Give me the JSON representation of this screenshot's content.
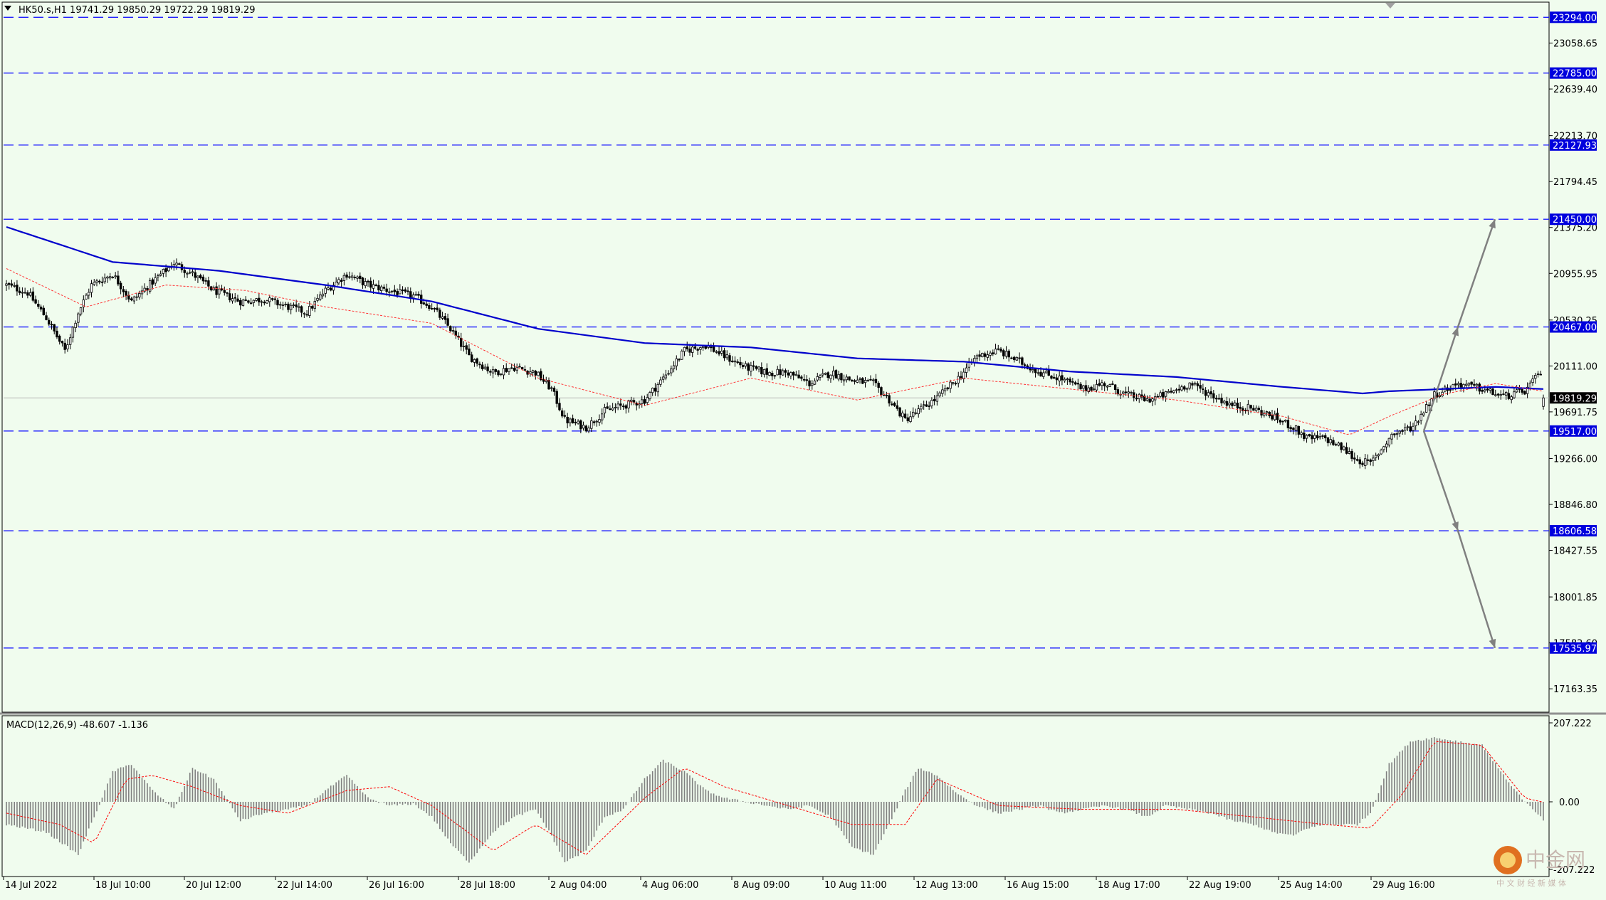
{
  "symbol_header": "HK50.s,H1  19741.29 19850.29 19722.29 19819.29",
  "macd_header": "MACD(12,26,9) -48.607 -1.136",
  "watermark": {
    "cn": "中金网",
    "sub": "中 文 财 经 新 媒 体"
  },
  "colors": {
    "background": "#f0fcee",
    "level_line": "#1a1aff",
    "ma_slow": "#0000cc",
    "ma_fast": "#ff3333",
    "candle": "#000000",
    "macd_hist": "#808080",
    "macd_signal": "#ff0000",
    "arrow": "#808080",
    "price_tag_bg": "#0000dd",
    "price_tag_text": "#ffffff",
    "current_tag_bg": "#000000"
  },
  "chart_data": [
    {
      "type": "candlestick",
      "instrument": "HK50.s",
      "timeframe": "H1",
      "ohlc_last": {
        "open": 19741.29,
        "high": 19850.29,
        "low": 19722.29,
        "close": 19819.29
      },
      "ylim": [
        16950,
        23400
      ],
      "y_ticks": [
        "23058.65",
        "22639.40",
        "22213.70",
        "21794.45",
        "21375.20",
        "20955.95",
        "20530.25",
        "20111.00",
        "19691.75",
        "19266.00",
        "18846.80",
        "18427.55",
        "18001.85",
        "17582.60",
        "17163.35"
      ],
      "y_ticks_values": [
        23058.65,
        22639.4,
        22213.7,
        21794.45,
        21375.2,
        20955.95,
        20530.25,
        20111.0,
        19691.75,
        19266.0,
        18846.8,
        18427.55,
        18001.85,
        17582.6,
        17163.35
      ],
      "x_ticks": [
        "14 Jul 2022",
        "18 Jul 10:00",
        "20 Jul 12:00",
        "22 Jul 14:00",
        "26 Jul 16:00",
        "28 Jul 18:00",
        "2 Aug 04:00",
        "4 Aug 06:00",
        "8 Aug 09:00",
        "10 Aug 11:00",
        "12 Aug 13:00",
        "16 Aug 15:00",
        "18 Aug 17:00",
        "22 Aug 19:00",
        "25 Aug 14:00",
        "29 Aug 16:00"
      ],
      "levels": [
        {
          "value": 23294.0,
          "label": "23294.00"
        },
        {
          "value": 22785.0,
          "label": "22785.00"
        },
        {
          "value": 22127.93,
          "label": "22127.93"
        },
        {
          "value": 21450.0,
          "label": "21450.00"
        },
        {
          "value": 20467.0,
          "label": "20467.00"
        },
        {
          "value": 19517.0,
          "label": "19517.00"
        },
        {
          "value": 18606.58,
          "label": "18606.58"
        },
        {
          "value": 17535.97,
          "label": "17535.97"
        }
      ],
      "current_price": {
        "value": 19819.29,
        "label": "19819.29"
      },
      "close_path": [
        [
          0,
          20850
        ],
        [
          8,
          20780
        ],
        [
          15,
          20550
        ],
        [
          22,
          20250
        ],
        [
          27,
          20600
        ],
        [
          32,
          20850
        ],
        [
          40,
          20950
        ],
        [
          47,
          20700
        ],
        [
          55,
          20880
        ],
        [
          63,
          21050
        ],
        [
          70,
          20950
        ],
        [
          78,
          20800
        ],
        [
          88,
          20700
        ],
        [
          97,
          20720
        ],
        [
          106,
          20650
        ],
        [
          113,
          20600
        ],
        [
          120,
          20800
        ],
        [
          128,
          20950
        ],
        [
          136,
          20850
        ],
        [
          144,
          20800
        ],
        [
          153,
          20750
        ],
        [
          160,
          20650
        ],
        [
          167,
          20450
        ],
        [
          174,
          20200
        ],
        [
          183,
          20050
        ],
        [
          191,
          20100
        ],
        [
          199,
          20050
        ],
        [
          205,
          19900
        ],
        [
          210,
          19620
        ],
        [
          218,
          19550
        ],
        [
          225,
          19700
        ],
        [
          232,
          19750
        ],
        [
          240,
          19800
        ],
        [
          247,
          20000
        ],
        [
          255,
          20250
        ],
        [
          263,
          20300
        ],
        [
          270,
          20200
        ],
        [
          278,
          20100
        ],
        [
          286,
          20050
        ],
        [
          294,
          20050
        ],
        [
          302,
          19950
        ],
        [
          310,
          20050
        ],
        [
          318,
          19980
        ],
        [
          326,
          19950
        ],
        [
          332,
          19800
        ],
        [
          338,
          19620
        ],
        [
          343,
          19700
        ],
        [
          350,
          19820
        ],
        [
          358,
          20000
        ],
        [
          365,
          20200
        ],
        [
          373,
          20250
        ],
        [
          381,
          20150
        ],
        [
          389,
          20050
        ],
        [
          396,
          20000
        ],
        [
          405,
          19900
        ],
        [
          413,
          19950
        ],
        [
          421,
          19850
        ],
        [
          429,
          19800
        ],
        [
          436,
          19850
        ],
        [
          445,
          19950
        ],
        [
          453,
          19850
        ],
        [
          461,
          19750
        ],
        [
          469,
          19720
        ],
        [
          476,
          19650
        ],
        [
          484,
          19550
        ],
        [
          489,
          19450
        ],
        [
          496,
          19450
        ],
        [
          503,
          19350
        ],
        [
          508,
          19250
        ],
        [
          513,
          19220
        ],
        [
          521,
          19480
        ],
        [
          529,
          19560
        ],
        [
          537,
          19850
        ],
        [
          546,
          19950
        ],
        [
          555,
          19900
        ],
        [
          563,
          19830
        ],
        [
          571,
          19880
        ],
        [
          578,
          20080
        ]
      ],
      "ma_slow_path": [
        [
          0,
          21380
        ],
        [
          40,
          21060
        ],
        [
          80,
          20980
        ],
        [
          120,
          20850
        ],
        [
          160,
          20700
        ],
        [
          200,
          20450
        ],
        [
          240,
          20320
        ],
        [
          280,
          20280
        ],
        [
          320,
          20180
        ],
        [
          360,
          20150
        ],
        [
          400,
          20060
        ],
        [
          440,
          20010
        ],
        [
          480,
          19920
        ],
        [
          510,
          19860
        ],
        [
          520,
          19880
        ],
        [
          560,
          19920
        ],
        [
          578,
          19900
        ]
      ],
      "ma_fast_path": [
        [
          0,
          21000
        ],
        [
          30,
          20650
        ],
        [
          60,
          20850
        ],
        [
          90,
          20800
        ],
        [
          120,
          20650
        ],
        [
          160,
          20500
        ],
        [
          200,
          20000
        ],
        [
          240,
          19750
        ],
        [
          280,
          20000
        ],
        [
          320,
          19800
        ],
        [
          360,
          20000
        ],
        [
          400,
          19900
        ],
        [
          440,
          19800
        ],
        [
          480,
          19650
        ],
        [
          505,
          19480
        ],
        [
          520,
          19650
        ],
        [
          540,
          19850
        ],
        [
          560,
          19950
        ],
        [
          578,
          19880
        ]
      ],
      "scenario_arrows": [
        {
          "from": [
            19517,
            0
          ],
          "to": [
            20467,
            1
          ],
          "label": ""
        },
        {
          "from": [
            20467,
            1
          ],
          "to": [
            21450,
            2
          ],
          "label": ""
        },
        {
          "from": [
            19517,
            0
          ],
          "to": [
            18606.58,
            1
          ],
          "label": ""
        },
        {
          "from": [
            18606.58,
            1
          ],
          "to": [
            17535.97,
            2
          ],
          "label": ""
        }
      ]
    },
    {
      "type": "bar",
      "indicator": "MACD(12,26,9)",
      "macd_value": -48.607,
      "signal_value": -1.136,
      "ylim": [
        -207.222,
        207.222
      ],
      "y_ticks": [
        "207.222",
        "0.00",
        "-207.222"
      ],
      "y_ticks_values": [
        207.222,
        0,
        -207.222
      ],
      "hist_path": [
        [
          0,
          -60
        ],
        [
          15,
          -80
        ],
        [
          27,
          -140
        ],
        [
          33,
          -40
        ],
        [
          40,
          80
        ],
        [
          47,
          100
        ],
        [
          55,
          30
        ],
        [
          63,
          -20
        ],
        [
          70,
          90
        ],
        [
          78,
          60
        ],
        [
          88,
          -50
        ],
        [
          97,
          -30
        ],
        [
          106,
          -20
        ],
        [
          113,
          -10
        ],
        [
          120,
          30
        ],
        [
          128,
          70
        ],
        [
          136,
          10
        ],
        [
          144,
          -10
        ],
        [
          153,
          -5
        ],
        [
          160,
          -40
        ],
        [
          167,
          -110
        ],
        [
          174,
          -160
        ],
        [
          183,
          -80
        ],
        [
          191,
          -40
        ],
        [
          199,
          -20
        ],
        [
          205,
          -90
        ],
        [
          210,
          -160
        ],
        [
          218,
          -130
        ],
        [
          225,
          -40
        ],
        [
          232,
          -20
        ],
        [
          240,
          60
        ],
        [
          247,
          110
        ],
        [
          255,
          80
        ],
        [
          263,
          30
        ],
        [
          270,
          10
        ],
        [
          278,
          0
        ],
        [
          286,
          -10
        ],
        [
          294,
          -20
        ],
        [
          302,
          -10
        ],
        [
          310,
          -40
        ],
        [
          318,
          -120
        ],
        [
          326,
          -140
        ],
        [
          332,
          -60
        ],
        [
          338,
          30
        ],
        [
          343,
          90
        ],
        [
          350,
          70
        ],
        [
          358,
          20
        ],
        [
          365,
          -10
        ],
        [
          373,
          -30
        ],
        [
          381,
          -20
        ],
        [
          389,
          -10
        ],
        [
          396,
          -30
        ],
        [
          405,
          -20
        ],
        [
          413,
          -10
        ],
        [
          421,
          -20
        ],
        [
          429,
          -40
        ],
        [
          436,
          -10
        ],
        [
          445,
          -20
        ],
        [
          453,
          -30
        ],
        [
          461,
          -50
        ],
        [
          469,
          -60
        ],
        [
          476,
          -80
        ],
        [
          484,
          -90
        ],
        [
          489,
          -70
        ],
        [
          496,
          -60
        ],
        [
          503,
          -60
        ],
        [
          508,
          -60
        ],
        [
          513,
          -30
        ],
        [
          520,
          100
        ],
        [
          528,
          160
        ],
        [
          537,
          170
        ],
        [
          546,
          160
        ],
        [
          555,
          150
        ],
        [
          563,
          70
        ],
        [
          571,
          0
        ],
        [
          578,
          -48
        ]
      ],
      "signal_path": [
        [
          0,
          -30
        ],
        [
          20,
          -60
        ],
        [
          33,
          -110
        ],
        [
          45,
          60
        ],
        [
          55,
          70
        ],
        [
          70,
          40
        ],
        [
          88,
          -10
        ],
        [
          106,
          -30
        ],
        [
          128,
          30
        ],
        [
          144,
          40
        ],
        [
          160,
          -10
        ],
        [
          183,
          -130
        ],
        [
          199,
          -60
        ],
        [
          218,
          -140
        ],
        [
          240,
          10
        ],
        [
          255,
          90
        ],
        [
          270,
          40
        ],
        [
          294,
          -10
        ],
        [
          318,
          -60
        ],
        [
          338,
          -60
        ],
        [
          350,
          60
        ],
        [
          373,
          -10
        ],
        [
          405,
          -20
        ],
        [
          440,
          -20
        ],
        [
          469,
          -40
        ],
        [
          496,
          -60
        ],
        [
          513,
          -70
        ],
        [
          525,
          20
        ],
        [
          537,
          160
        ],
        [
          555,
          150
        ],
        [
          571,
          10
        ],
        [
          578,
          -1
        ]
      ]
    }
  ]
}
